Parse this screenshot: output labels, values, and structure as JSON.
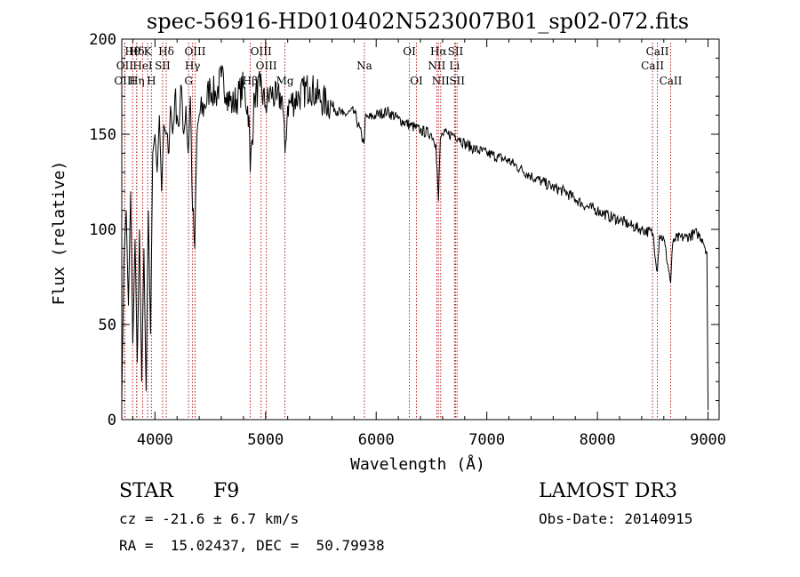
{
  "chart_data": {
    "type": "line",
    "title": "spec-56916-HD010402N523007B01_sp02-072.fits",
    "xlabel": "Wavelength (Å)",
    "ylabel": "Flux (relative)",
    "xlim": [
      3700,
      9100
    ],
    "ylim": [
      0,
      200
    ],
    "xticks": [
      4000,
      5000,
      6000,
      7000,
      8000,
      9000
    ],
    "yticks": [
      0,
      50,
      100,
      150,
      200
    ],
    "xtick_labels": [
      "4000",
      "5000",
      "6000",
      "7000",
      "8000",
      "9000"
    ],
    "ytick_labels": [
      "0",
      "50",
      "100",
      "150",
      "200"
    ],
    "series": [
      {
        "name": "spectrum",
        "x": [
          3700,
          3720,
          3740,
          3760,
          3780,
          3800,
          3820,
          3840,
          3860,
          3880,
          3900,
          3920,
          3940,
          3960,
          3980,
          4000,
          4020,
          4040,
          4060,
          4080,
          4100,
          4120,
          4140,
          4160,
          4180,
          4200,
          4220,
          4240,
          4260,
          4280,
          4300,
          4320,
          4340,
          4360,
          4380,
          4400,
          4450,
          4500,
          4550,
          4600,
          4650,
          4700,
          4750,
          4800,
          4850,
          4861,
          4900,
          4950,
          5000,
          5050,
          5100,
          5150,
          5175,
          5200,
          5300,
          5400,
          5500,
          5600,
          5700,
          5800,
          5890,
          5900,
          6000,
          6100,
          6200,
          6300,
          6400,
          6500,
          6540,
          6563,
          6580,
          6600,
          6650,
          6700,
          6750,
          6800,
          6900,
          7000,
          7100,
          7200,
          7300,
          7400,
          7500,
          7600,
          7700,
          7800,
          7900,
          8000,
          8100,
          8200,
          8300,
          8400,
          8500,
          8542,
          8560,
          8600,
          8662,
          8680,
          8700,
          8800,
          8900,
          8950,
          8990,
          9000
        ],
        "y": [
          10,
          85,
          110,
          60,
          120,
          40,
          95,
          30,
          100,
          20,
          90,
          15,
          110,
          45,
          140,
          150,
          130,
          160,
          120,
          155,
          150,
          140,
          165,
          150,
          170,
          160,
          155,
          175,
          150,
          165,
          140,
          170,
          110,
          90,
          150,
          160,
          165,
          175,
          170,
          180,
          172,
          165,
          170,
          175,
          160,
          130,
          170,
          175,
          165,
          172,
          168,
          170,
          140,
          165,
          170,
          175,
          168,
          165,
          160,
          162,
          145,
          158,
          160,
          162,
          158,
          155,
          152,
          150,
          145,
          115,
          148,
          150,
          150,
          150,
          148,
          145,
          142,
          140,
          138,
          136,
          132,
          128,
          125,
          122,
          120,
          116,
          112,
          110,
          107,
          105,
          102,
          100,
          98,
          78,
          97,
          95,
          72,
          92,
          95,
          96,
          98,
          95,
          88,
          5
        ]
      }
    ],
    "lines": [
      {
        "label": "Hθ",
        "wave": 3798,
        "row": 1
      },
      {
        "label": "OII",
        "wave": 3727,
        "row": 2
      },
      {
        "label": "OIII",
        "wave": 3727,
        "row": 3
      },
      {
        "label": "Hδ",
        "wave": 3835,
        "row": 1
      },
      {
        "label": "HeI",
        "wave": 3889,
        "row": 2
      },
      {
        "label": "Hη",
        "wave": 3835,
        "row": 3
      },
      {
        "label": "K",
        "wave": 3934,
        "row": 1
      },
      {
        "label": "SII",
        "wave": 4069,
        "row": 2
      },
      {
        "label": "H",
        "wave": 3968,
        "row": 3
      },
      {
        "label": "Hδ",
        "wave": 4102,
        "row": 1
      },
      {
        "label": "OIII",
        "wave": 4363,
        "row": 1
      },
      {
        "label": "Hγ",
        "wave": 4340,
        "row": 2
      },
      {
        "label": "G",
        "wave": 4304,
        "row": 3
      },
      {
        "label": "OIII",
        "wave": 4959,
        "row": 1
      },
      {
        "label": "OIII",
        "wave": 5007,
        "row": 2
      },
      {
        "label": "Hβ",
        "wave": 4861,
        "row": 3
      },
      {
        "label": "Mg",
        "wave": 5175,
        "row": 3
      },
      {
        "label": "Na",
        "wave": 5893,
        "row": 2
      },
      {
        "label": "OI",
        "wave": 6300,
        "row": 1
      },
      {
        "label": "OI",
        "wave": 6364,
        "row": 3
      },
      {
        "label": "Hα",
        "wave": 6563,
        "row": 1
      },
      {
        "label": "NII",
        "wave": 6548,
        "row": 2
      },
      {
        "label": "NII",
        "wave": 6583,
        "row": 3
      },
      {
        "label": "SII",
        "wave": 6717,
        "row": 1
      },
      {
        "label": "Li",
        "wave": 6708,
        "row": 2
      },
      {
        "label": "SII",
        "wave": 6731,
        "row": 3
      },
      {
        "label": "CaII",
        "wave": 8542,
        "row": 1
      },
      {
        "label": "CaII",
        "wave": 8498,
        "row": 2
      },
      {
        "label": "CaII",
        "wave": 8662,
        "row": 3
      }
    ],
    "line_color": "#b22222",
    "spectrum_color": "#000000",
    "axis_color": "#000000"
  },
  "info": {
    "object_class": "STAR",
    "subclass": "F9",
    "survey": "LAMOST DR3",
    "cz": "cz = -21.6 ± 6.7 km/s",
    "obs_date": "Obs-Date: 20140915",
    "coords": "RA =  15.02437, DEC =  50.79938"
  }
}
